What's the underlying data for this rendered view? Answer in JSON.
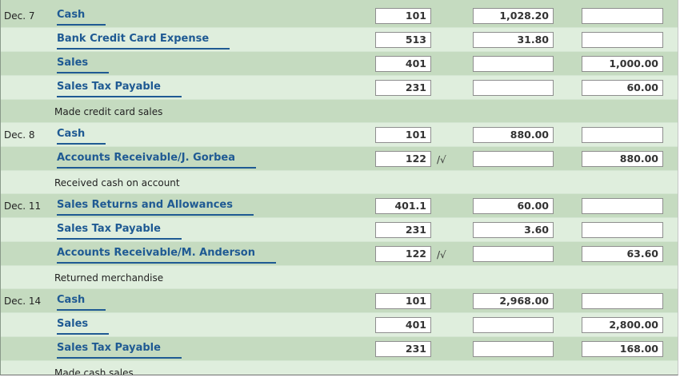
{
  "rows": [
    {
      "date": "Dec. 7",
      "account": "Cash",
      "ref": "101",
      "debit": "1,028.20",
      "credit": ""
    },
    {
      "date": "",
      "account": "Bank Credit Card Expense",
      "ref": "513",
      "debit": "31.80",
      "credit": ""
    },
    {
      "date": "",
      "account": "Sales",
      "ref": "401",
      "debit": "",
      "credit": "1,000.00"
    },
    {
      "date": "",
      "account": "Sales Tax Payable",
      "ref": "231",
      "debit": "",
      "credit": "60.00"
    },
    {
      "memo": "Made credit card sales"
    },
    {
      "date": "Dec. 8",
      "account": "Cash",
      "ref": "101",
      "debit": "880.00",
      "credit": ""
    },
    {
      "date": "",
      "account": "Accounts Receivable/J. Gorbea",
      "ref": "122",
      "post": "/√",
      "debit": "",
      "credit": "880.00"
    },
    {
      "memo": "Received cash on account"
    },
    {
      "date": "Dec. 11",
      "account": "Sales Returns and Allowances",
      "ref": "401.1",
      "debit": "60.00",
      "credit": ""
    },
    {
      "date": "",
      "account": "Sales Tax Payable",
      "ref": "231",
      "debit": "3.60",
      "credit": ""
    },
    {
      "date": "",
      "account": "Accounts Receivable/M. Anderson",
      "ref": "122",
      "post": "/√",
      "debit": "",
      "credit": "63.60"
    },
    {
      "memo": "Returned merchandise"
    },
    {
      "date": "Dec. 14",
      "account": "Cash",
      "ref": "101",
      "debit": "2,968.00",
      "credit": ""
    },
    {
      "date": "",
      "account": "Sales",
      "ref": "401",
      "debit": "",
      "credit": "2,800.00"
    },
    {
      "date": "",
      "account": "Sales Tax Payable",
      "ref": "231",
      "debit": "",
      "credit": "168.00"
    },
    {
      "memo": "Made cash sales"
    }
  ]
}
